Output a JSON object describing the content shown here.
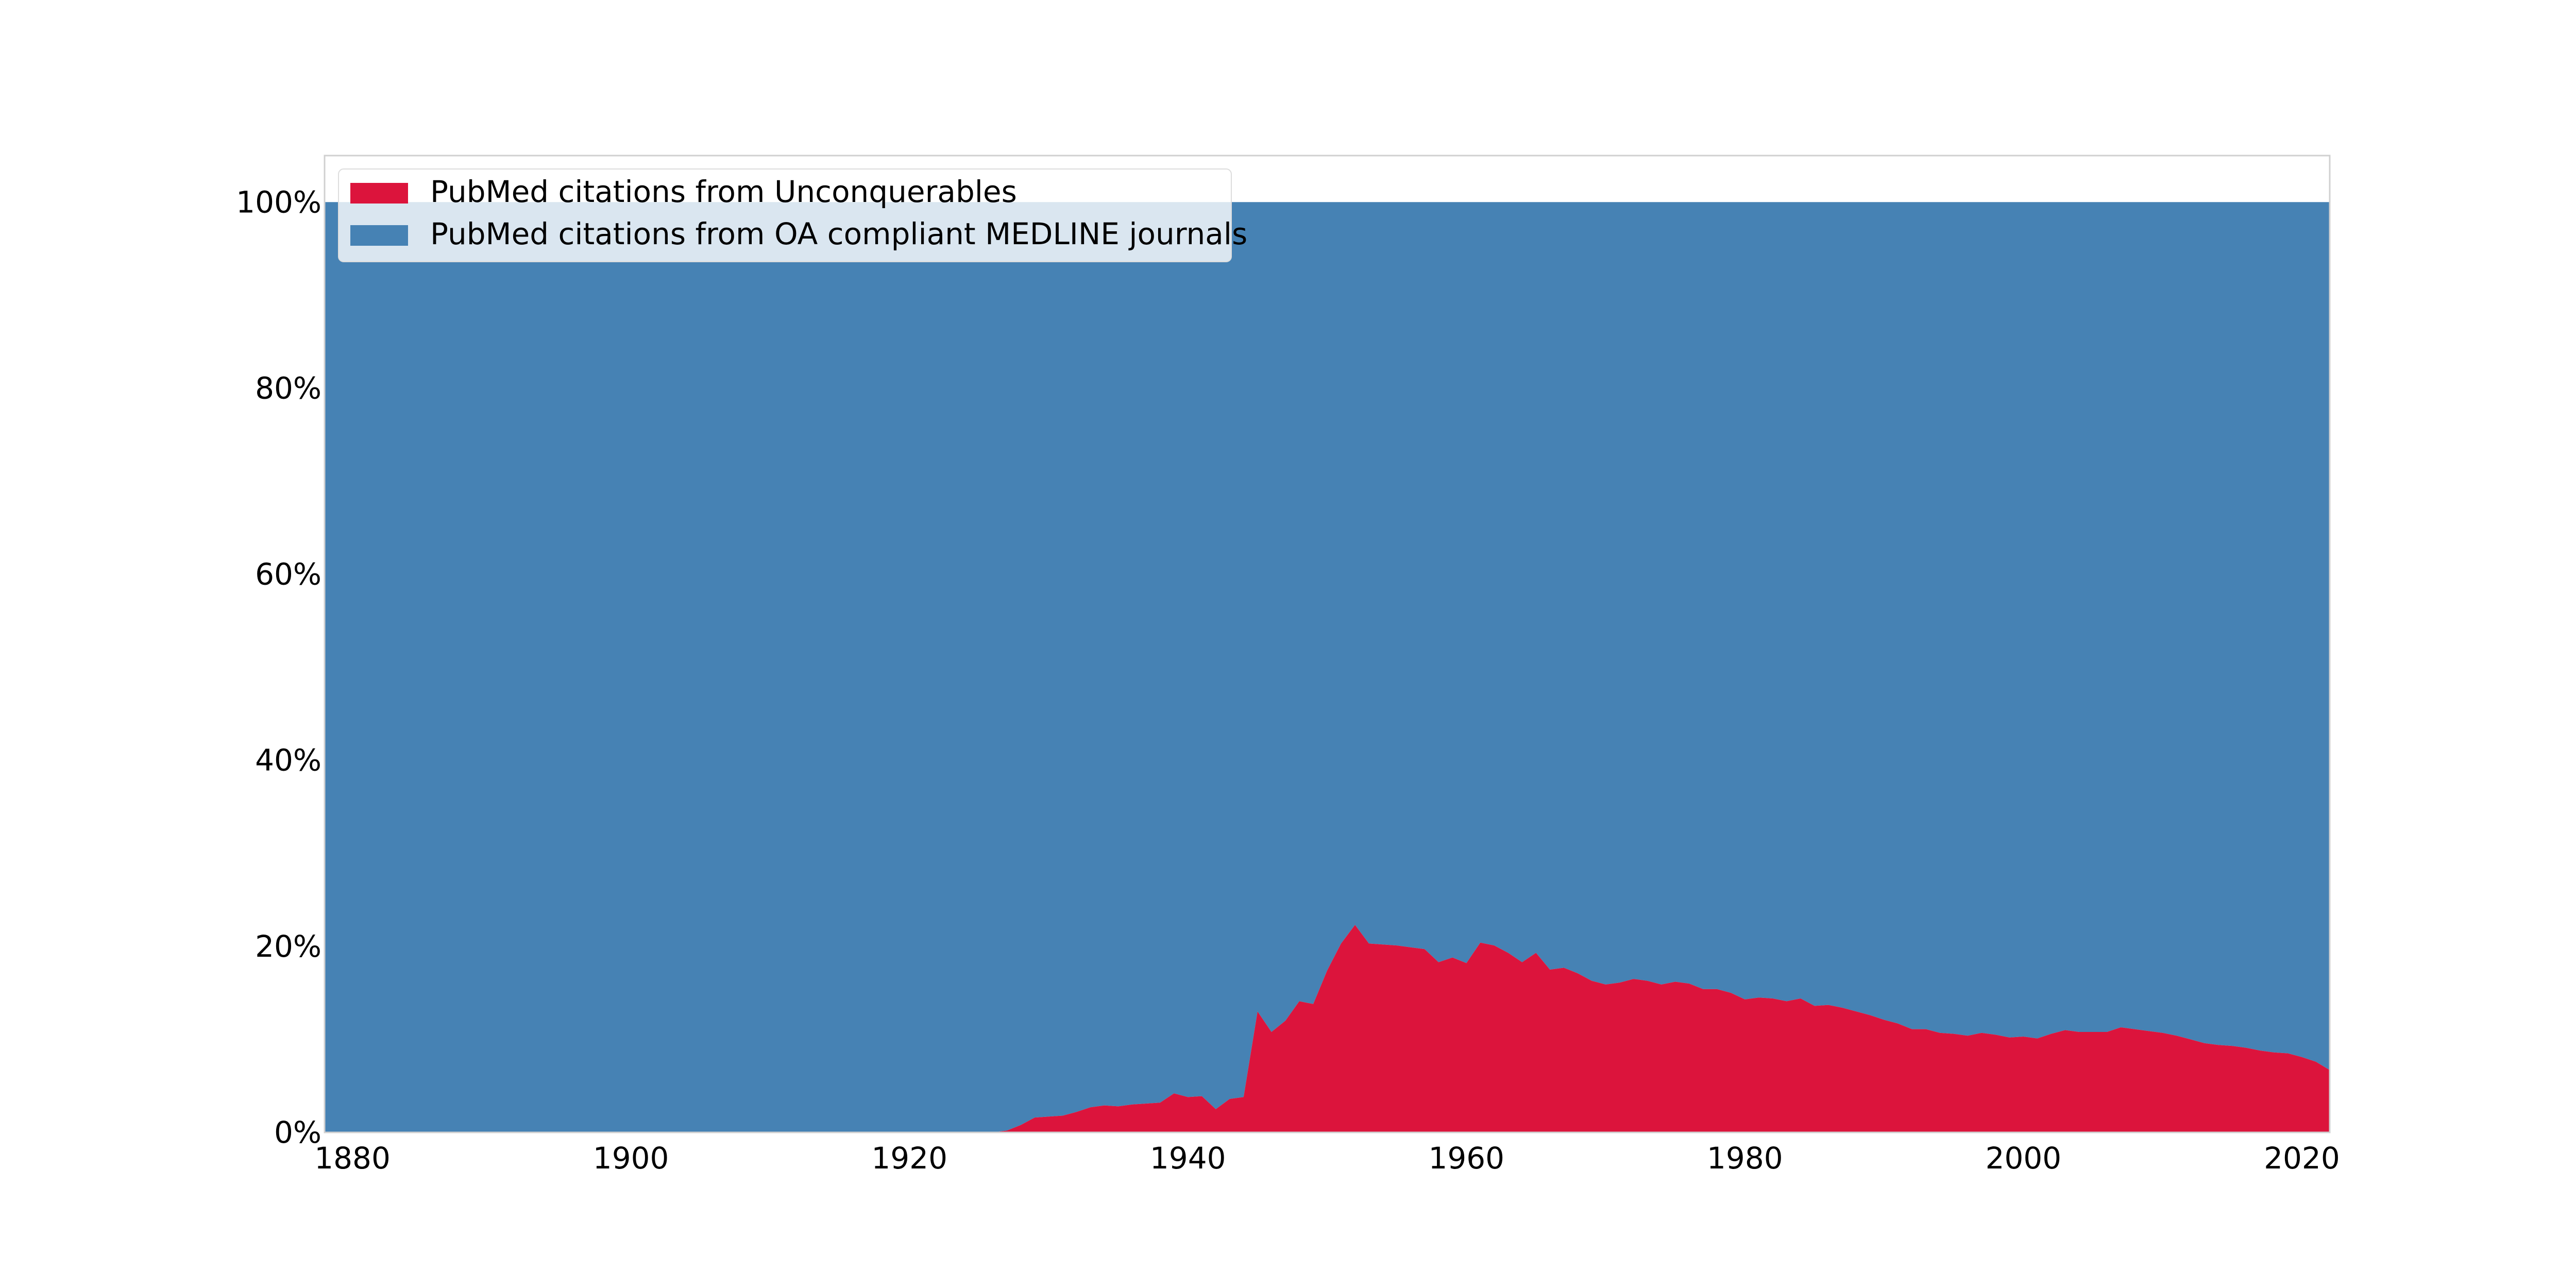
{
  "chart_data": {
    "type": "area",
    "stacked": true,
    "normalized_percent": true,
    "title": "",
    "xlabel": "",
    "ylabel": "",
    "xlim": [
      1878,
      2022
    ],
    "ylim": [
      0,
      105
    ],
    "xticks": [
      1880,
      1900,
      1920,
      1940,
      1960,
      1980,
      2000,
      2020
    ],
    "yticks": [
      0,
      20,
      40,
      60,
      80,
      100
    ],
    "ytick_labels": [
      "0%",
      "20%",
      "40%",
      "60%",
      "80%",
      "100%"
    ],
    "grid": false,
    "legend_position": "top-left",
    "x": [
      1878,
      1926,
      1927,
      1928,
      1929,
      1930,
      1931,
      1932,
      1933,
      1934,
      1935,
      1936,
      1937,
      1938,
      1939,
      1940,
      1941,
      1942,
      1943,
      1944,
      1945,
      1946,
      1947,
      1948,
      1949,
      1950,
      1951,
      1952,
      1953,
      1954,
      1955,
      1956,
      1957,
      1958,
      1959,
      1960,
      1961,
      1962,
      1963,
      1964,
      1965,
      1966,
      1967,
      1968,
      1969,
      1970,
      1971,
      1972,
      1973,
      1974,
      1975,
      1976,
      1977,
      1978,
      1979,
      1980,
      1981,
      1982,
      1983,
      1984,
      1985,
      1986,
      1987,
      1988,
      1989,
      1990,
      1991,
      1992,
      1993,
      1994,
      1995,
      1996,
      1997,
      1998,
      1999,
      2000,
      2001,
      2002,
      2003,
      2004,
      2005,
      2006,
      2007,
      2008,
      2009,
      2010,
      2011,
      2012,
      2013,
      2014,
      2015,
      2016,
      2017,
      2018,
      2019,
      2020,
      2021,
      2022
    ],
    "series": [
      {
        "name": "PubMed citations from Unconquerables",
        "color": "#DC143C",
        "values": [
          0,
          0,
          0.2,
          0.8,
          1.6,
          1.7,
          1.8,
          2.2,
          2.7,
          2.9,
          2.8,
          3.0,
          3.1,
          3.2,
          4.2,
          3.8,
          3.9,
          2.5,
          3.6,
          3.8,
          13.0,
          10.8,
          12.0,
          14.1,
          13.8,
          17.4,
          20.3,
          22.3,
          20.3,
          20.2,
          20.1,
          19.9,
          19.7,
          18.3,
          18.8,
          18.2,
          20.4,
          20.1,
          19.3,
          18.3,
          19.3,
          17.5,
          17.7,
          17.1,
          16.3,
          15.9,
          16.1,
          16.5,
          16.3,
          15.9,
          16.2,
          16.0,
          15.4,
          15.4,
          15.0,
          14.3,
          14.5,
          14.4,
          14.1,
          14.4,
          13.6,
          13.7,
          13.4,
          13.0,
          12.6,
          12.1,
          11.7,
          11.1,
          11.1,
          10.7,
          10.6,
          10.4,
          10.7,
          10.5,
          10.2,
          10.3,
          10.1,
          10.6,
          11.0,
          10.8,
          10.8,
          10.8,
          11.3,
          11.1,
          10.9,
          10.7,
          10.4,
          10.0,
          9.6,
          9.4,
          9.3,
          9.1,
          8.8,
          8.6,
          8.5,
          8.1,
          7.6,
          6.7
        ]
      },
      {
        "name": "PubMed citations from OA compliant MEDLINE journals",
        "color": "#4682B4",
        "values_description": "remainder to 100%"
      }
    ]
  }
}
